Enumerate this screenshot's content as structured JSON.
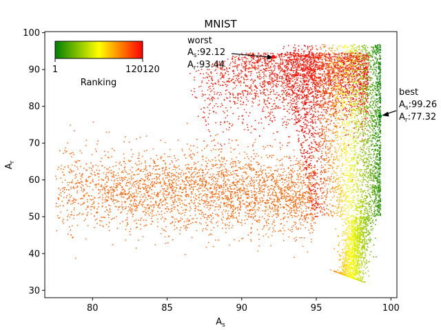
{
  "chart_data": {
    "type": "scatter",
    "title": "MNIST",
    "xlabel_main": "A",
    "xlabel_sub": "s",
    "ylabel_main": "A",
    "ylabel_sub": "r",
    "xlim": [
      76.8,
      100.4
    ],
    "ylim": [
      28,
      100.3
    ],
    "xticks": [
      80,
      85,
      90,
      95,
      100
    ],
    "yticks": [
      30,
      40,
      50,
      60,
      70,
      80,
      90,
      100
    ],
    "grid": false,
    "colorbar": {
      "label": "Ranking",
      "min_label": "1",
      "max_label": "120120",
      "colors": [
        "#008000",
        "#ffff00",
        "#ff0000"
      ],
      "placement": "top-left"
    },
    "n_points_total": 120120,
    "point_clouds": [
      {
        "region": "dense-right-band",
        "x_range": [
          95.5,
          99.4
        ],
        "y_range": [
          31,
          96.5
        ],
        "color_by": "ranking"
      },
      {
        "region": "upper-right-red",
        "x_range": [
          86.5,
          98.5
        ],
        "y_range": [
          60,
          95
        ],
        "color": "red"
      },
      {
        "region": "left-orange-spread",
        "x_range": [
          77.5,
          95
        ],
        "y_range": [
          34,
          73
        ],
        "color": "orange"
      }
    ],
    "annotations": [
      {
        "name": "worst",
        "label": "worst",
        "as_label": "A",
        "as_sub": "s",
        "as_value": ":92.12",
        "ar_label": "A",
        "ar_sub": "r",
        "ar_value": ":93.44",
        "x": 92.12,
        "y": 93.44,
        "color": "#ff0000"
      },
      {
        "name": "best",
        "label": "best",
        "as_label": "A",
        "as_sub": "s",
        "as_value": ":99.26",
        "ar_label": "A",
        "ar_sub": "r",
        "ar_value": ":77.32",
        "x": 99.26,
        "y": 77.32,
        "color": "#008000"
      }
    ]
  }
}
